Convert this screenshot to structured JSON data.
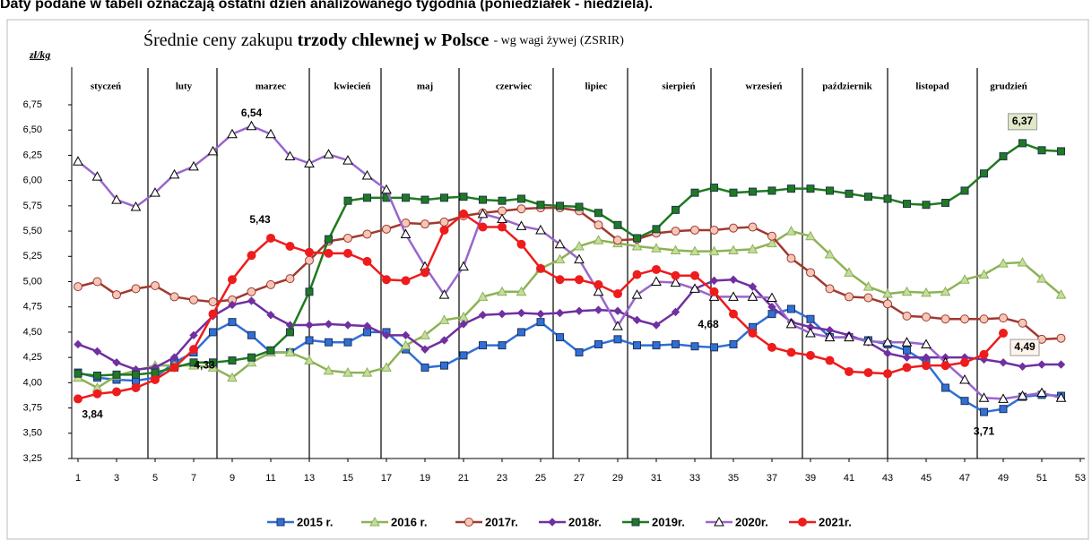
{
  "note": "Daty podane w tabeli oznaczają ostatni dzień analizowanego tygodnia (poniedziałek - niedziela).",
  "chart_data": {
    "type": "line",
    "title": "Średnie ceny zakupu",
    "title_bold": "trzody chlewnej w Polsce",
    "title_suffix": "- wg wagi żywej (ZSRIR)",
    "y_label": "zł/kg",
    "months": [
      "styczeń",
      "luty",
      "marzec",
      "kwiecień",
      "maj",
      "czerwiec",
      "lipiec",
      "sierpień",
      "wrzesień",
      "październik",
      "listopad",
      "grudzień"
    ],
    "x": [
      1,
      2,
      3,
      4,
      5,
      6,
      7,
      8,
      9,
      10,
      11,
      12,
      13,
      14,
      15,
      16,
      17,
      18,
      19,
      20,
      21,
      22,
      23,
      24,
      25,
      26,
      27,
      28,
      29,
      30,
      31,
      32,
      33,
      34,
      35,
      36,
      37,
      38,
      39,
      40,
      41,
      42,
      43,
      44,
      45,
      46,
      47,
      48,
      49,
      50,
      51,
      52
    ],
    "xlim": [
      1,
      53
    ],
    "xticks": [
      1,
      3,
      5,
      7,
      9,
      11,
      13,
      15,
      17,
      19,
      21,
      23,
      25,
      27,
      29,
      31,
      33,
      35,
      37,
      39,
      41,
      43,
      45,
      47,
      49,
      51,
      53
    ],
    "ylim": [
      3.25,
      6.75
    ],
    "yticks": [
      {
        "value": 3.25,
        "label": "3,25"
      },
      {
        "value": 3.5,
        "label": "3,50"
      },
      {
        "value": 3.75,
        "label": "3,75"
      },
      {
        "value": 4,
        "label": "4,00"
      },
      {
        "value": 4.25,
        "label": "4,25"
      },
      {
        "value": 4.5,
        "label": "4,50"
      },
      {
        "value": 4.75,
        "label": "4,75"
      },
      {
        "value": 5,
        "label": "5,00"
      },
      {
        "value": 5.25,
        "label": "5,25"
      },
      {
        "value": 5.5,
        "label": "5,50"
      },
      {
        "value": 5.75,
        "label": "5,75"
      },
      {
        "value": 6,
        "label": "6,00"
      },
      {
        "value": 6.25,
        "label": "6,25"
      },
      {
        "value": 6.5,
        "label": "6,50"
      },
      {
        "value": 6.75,
        "label": "6,75"
      }
    ],
    "series": [
      {
        "name": "2015 r.",
        "color": "#2f6fd8",
        "marker": "square",
        "marker_fill": "#2f6fd8",
        "values": [
          4.1,
          4.05,
          4.03,
          4.02,
          4.05,
          4.2,
          4.3,
          4.5,
          4.6,
          4.47,
          4.3,
          4.3,
          4.42,
          4.4,
          4.4,
          4.5,
          4.5,
          4.33,
          4.15,
          4.17,
          4.27,
          4.37,
          4.37,
          4.5,
          4.6,
          4.45,
          4.3,
          4.38,
          4.43,
          4.37,
          4.37,
          4.38,
          4.36,
          4.35,
          4.38,
          4.55,
          4.68,
          4.73,
          4.63,
          4.45,
          4.45,
          4.42,
          4.38,
          4.32,
          4.2,
          3.95,
          3.82,
          3.71,
          3.74,
          3.86,
          3.88,
          3.87
        ],
        "value_labels": [
          null,
          null,
          null,
          null,
          null,
          null,
          null,
          null,
          null,
          null,
          null,
          null,
          null,
          null,
          null,
          null,
          null,
          null,
          null,
          null,
          null,
          null,
          null,
          null,
          null,
          null,
          null,
          null,
          null,
          null,
          null,
          null,
          null,
          null,
          null,
          null,
          null,
          null,
          null,
          null,
          null,
          null,
          null,
          null,
          null,
          null,
          null,
          "3,71",
          null,
          null,
          null,
          null
        ]
      },
      {
        "name": "2016 r.",
        "color": "#8db255",
        "marker": "triangle",
        "marker_fill": "#c5dca0",
        "values": [
          4.05,
          3.95,
          4.07,
          4.12,
          4.17,
          4.17,
          4.17,
          4.15,
          4.05,
          4.2,
          4.3,
          4.3,
          4.22,
          4.12,
          4.1,
          4.1,
          4.15,
          4.37,
          4.47,
          4.62,
          4.65,
          4.85,
          4.9,
          4.9,
          5.13,
          5.22,
          5.35,
          5.41,
          5.38,
          5.35,
          5.33,
          5.31,
          5.3,
          5.3,
          5.31,
          5.32,
          5.38,
          5.5,
          5.45,
          5.27,
          5.09,
          4.95,
          4.88,
          4.9,
          4.89,
          4.9,
          5.02,
          5.07,
          5.18,
          5.19,
          5.03,
          4.87
        ]
      },
      {
        "name": "2017r.",
        "color": "#a0392f",
        "marker": "circle",
        "marker_fill": "#f4c7b7",
        "values": [
          4.95,
          5.0,
          4.87,
          4.93,
          4.96,
          4.85,
          4.82,
          4.8,
          4.82,
          4.9,
          4.97,
          5.03,
          5.21,
          5.4,
          5.43,
          5.47,
          5.52,
          5.58,
          5.57,
          5.59,
          5.65,
          5.68,
          5.7,
          5.72,
          5.73,
          5.73,
          5.7,
          5.56,
          5.41,
          5.42,
          5.48,
          5.5,
          5.51,
          5.51,
          5.53,
          5.54,
          5.45,
          5.23,
          5.09,
          4.93,
          4.85,
          4.84,
          4.78,
          4.66,
          4.65,
          4.63,
          4.63,
          4.63,
          4.64,
          4.59,
          4.43,
          4.44
        ]
      },
      {
        "name": "2018r.",
        "color": "#7030a0",
        "marker": "diamond",
        "marker_fill": "#7030a0",
        "values": [
          4.38,
          4.31,
          4.2,
          4.13,
          4.15,
          4.25,
          4.47,
          4.66,
          4.77,
          4.81,
          4.67,
          4.57,
          4.57,
          4.58,
          4.57,
          4.56,
          4.47,
          4.47,
          4.33,
          4.42,
          4.58,
          4.67,
          4.68,
          4.69,
          4.68,
          4.69,
          4.71,
          4.72,
          4.71,
          4.62,
          4.57,
          4.7,
          4.93,
          5.01,
          5.02,
          4.95,
          4.75,
          4.6,
          4.55,
          4.52,
          4.47,
          4.4,
          4.29,
          4.25,
          4.25,
          4.25,
          4.25,
          4.23,
          4.2,
          4.16,
          4.18,
          4.18
        ]
      },
      {
        "name": "2019r.",
        "color": "#1e7b1e",
        "marker": "square",
        "marker_fill": "#1e7b1e",
        "values": [
          4.09,
          4.07,
          4.08,
          4.08,
          4.1,
          4.15,
          4.2,
          4.2,
          4.22,
          4.25,
          4.32,
          4.5,
          4.9,
          5.42,
          5.8,
          5.83,
          5.83,
          5.83,
          5.81,
          5.83,
          5.84,
          5.81,
          5.8,
          5.82,
          5.76,
          5.75,
          5.74,
          5.68,
          5.56,
          5.43,
          5.52,
          5.71,
          5.88,
          5.93,
          5.88,
          5.89,
          5.9,
          5.92,
          5.92,
          5.9,
          5.87,
          5.84,
          5.82,
          5.77,
          5.76,
          5.78,
          5.9,
          6.07,
          6.24,
          6.37,
          6.3,
          6.29
        ],
        "value_labels": [
          null,
          null,
          null,
          null,
          null,
          null,
          null,
          null,
          null,
          null,
          null,
          null,
          null,
          null,
          null,
          null,
          null,
          null,
          null,
          null,
          null,
          null,
          null,
          null,
          null,
          null,
          null,
          null,
          null,
          null,
          null,
          null,
          null,
          null,
          null,
          null,
          null,
          null,
          null,
          null,
          null,
          null,
          null,
          null,
          null,
          null,
          null,
          null,
          null,
          "6,37",
          null,
          null
        ]
      },
      {
        "name": "2020r.",
        "color": "#9966cc",
        "marker": "triangle",
        "marker_fill": "#ffffff",
        "values": [
          6.19,
          6.04,
          5.81,
          5.74,
          5.88,
          6.06,
          6.14,
          6.29,
          6.46,
          6.54,
          6.46,
          6.24,
          6.17,
          6.26,
          6.2,
          6.05,
          5.91,
          5.47,
          5.15,
          4.87,
          5.15,
          5.67,
          5.62,
          5.55,
          5.51,
          5.37,
          5.22,
          4.9,
          4.56,
          4.87,
          5.0,
          4.99,
          4.93,
          4.85,
          4.85,
          4.85,
          4.84,
          4.58,
          4.49,
          4.45,
          4.45,
          4.41,
          4.4,
          4.4,
          4.38,
          4.2,
          4.03,
          3.85,
          3.84,
          3.87,
          3.9,
          3.85
        ],
        "value_labels": [
          null,
          null,
          null,
          null,
          null,
          null,
          null,
          null,
          null,
          "6,54",
          null,
          null,
          null,
          null,
          null,
          null,
          null,
          null,
          null,
          null,
          null,
          null,
          null,
          null,
          null,
          null,
          null,
          null,
          null,
          null,
          null,
          null,
          null,
          null,
          null,
          null,
          null,
          null,
          null,
          null,
          null,
          null,
          null,
          null,
          null,
          null,
          null,
          null,
          null,
          null,
          null,
          null
        ]
      },
      {
        "name": "2021r.",
        "color": "#ee1c1c",
        "marker": "circle",
        "marker_fill": "#ee1c1c",
        "values": [
          3.84,
          3.89,
          3.91,
          3.95,
          4.03,
          4.15,
          4.33,
          4.68,
          5.02,
          5.26,
          5.43,
          5.35,
          5.29,
          5.28,
          5.28,
          5.2,
          5.02,
          5.01,
          5.09,
          5.51,
          5.67,
          5.54,
          5.54,
          5.37,
          5.13,
          5.02,
          5.02,
          4.97,
          4.88,
          5.07,
          5.12,
          5.06,
          5.06,
          4.9,
          4.68,
          4.49,
          4.35,
          4.3,
          4.27,
          4.22,
          4.11,
          4.1,
          4.09,
          4.15,
          4.17,
          4.17,
          4.2,
          4.28,
          4.49,
          null,
          null,
          null
        ],
        "value_labels": [
          "3,84",
          null,
          null,
          null,
          null,
          null,
          "4,33",
          null,
          null,
          null,
          "5,43",
          null,
          null,
          null,
          null,
          null,
          null,
          null,
          null,
          null,
          null,
          null,
          null,
          null,
          null,
          null,
          null,
          null,
          null,
          null,
          null,
          null,
          null,
          null,
          "4,68",
          null,
          null,
          null,
          null,
          null,
          null,
          null,
          null,
          null,
          null,
          null,
          null,
          null,
          "4,49",
          null,
          null,
          null
        ]
      }
    ]
  }
}
